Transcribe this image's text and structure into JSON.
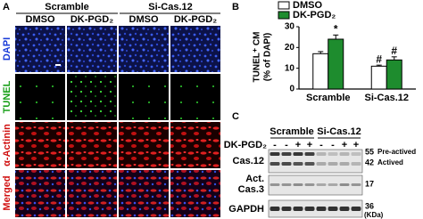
{
  "panel_a": {
    "label": "A",
    "groups": [
      "Scramble",
      "Si-Cas.12"
    ],
    "columns": [
      "DMSO",
      "DK-PGD₂",
      "DMSO",
      "DK-PGD₂"
    ],
    "rows": [
      "DAPI",
      "TUNEL",
      "α-Actinin",
      "Merged"
    ]
  },
  "chart_data": {
    "type": "bar",
    "label": "B",
    "ylabel": [
      "TUNEL⁺ CM",
      "(% of DAPI)"
    ],
    "categories": [
      "Scramble",
      "Si-Cas.12"
    ],
    "series": [
      {
        "name": "DMSO",
        "color": "#ffffff",
        "values": [
          17,
          11
        ],
        "errors": [
          1,
          0.5
        ],
        "annotations": [
          null,
          "#"
        ]
      },
      {
        "name": "DK-PGD₂",
        "color": "#1e8c2e",
        "values": [
          24,
          14
        ],
        "errors": [
          2,
          1.5
        ],
        "annotations": [
          "*",
          "#"
        ]
      }
    ],
    "ylim": [
      0,
      30
    ],
    "yticks": [
      0,
      10,
      20,
      30
    ]
  },
  "panel_c": {
    "label": "C",
    "groups": [
      "Scramble",
      "Si-Cas.12"
    ],
    "treatment": "DK-PGD₂",
    "signs": [
      "-",
      "-",
      "+",
      "+",
      "-",
      "-",
      "+",
      "+"
    ],
    "rows": [
      "Cas.12",
      [
        "Act.",
        "Cas.3"
      ],
      "GAPDH"
    ],
    "markers": [
      "55",
      "Pre-actived",
      "42",
      "Actived",
      "17",
      "36",
      "(KDa)"
    ]
  }
}
